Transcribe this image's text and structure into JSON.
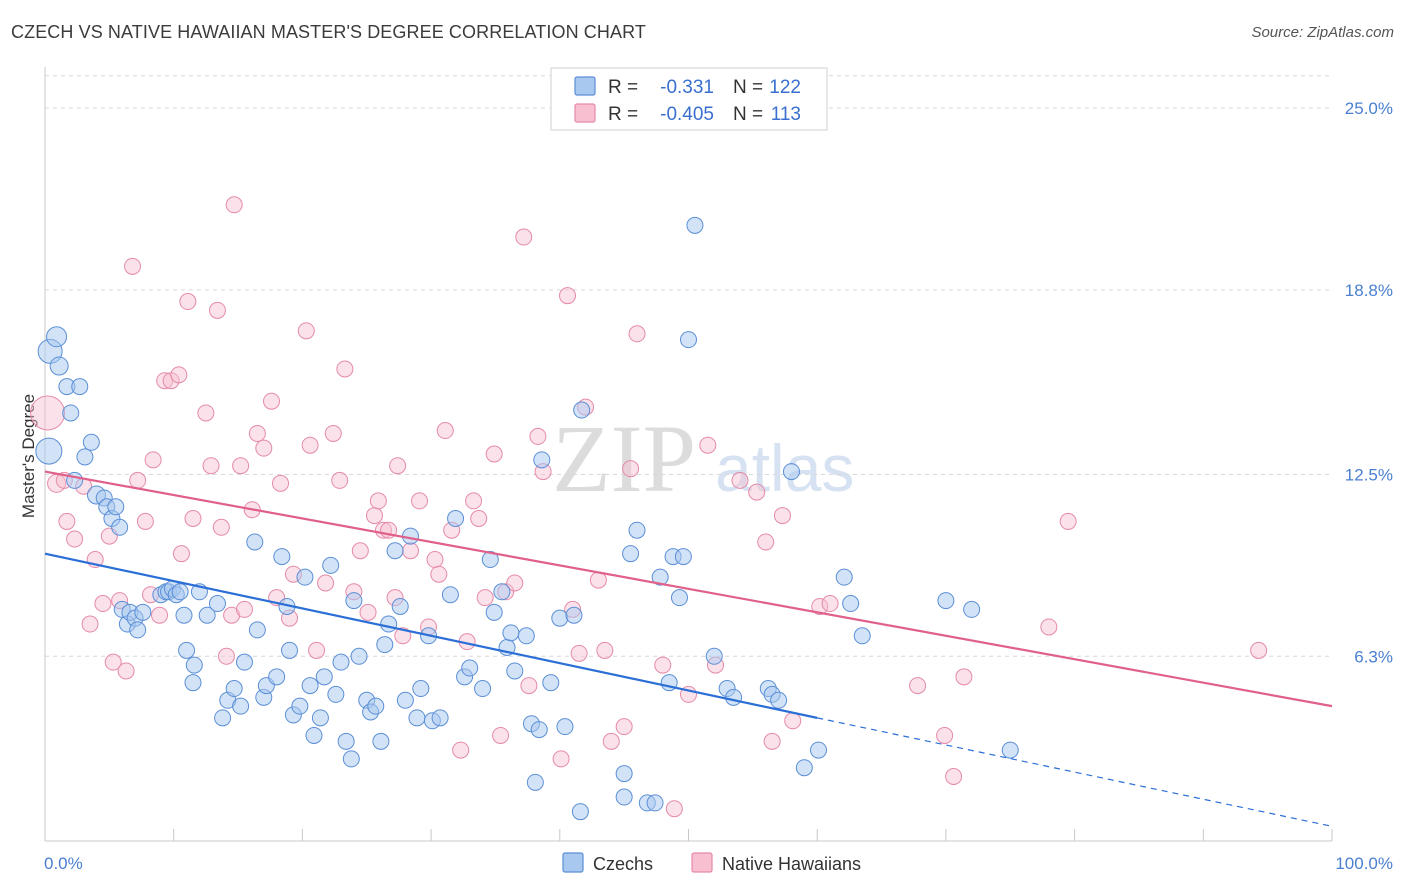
{
  "title": "CZECH VS NATIVE HAWAIIAN MASTER'S DEGREE CORRELATION CHART",
  "source": "Source: ZipAtlas.com",
  "watermark": {
    "zip": "ZIP",
    "atlas": "atlas"
  },
  "legend": {
    "rows": [
      {
        "r_label": "R =",
        "r_value": "-0.331",
        "n_label": "N =",
        "n_value": "122"
      },
      {
        "r_label": "R =",
        "r_value": "-0.405",
        "n_label": "N =",
        "n_value": "113"
      }
    ]
  },
  "bottom_legend": [
    "Czechs",
    "Native Hawaiians"
  ],
  "colors": {
    "czech_fill": "#a8c8f0",
    "czech_stroke": "#5b8fd6",
    "czech_line": "#2b6fd6",
    "hawaiian_fill": "#f7bfd0",
    "hawaiian_stroke": "#e58aa8",
    "hawaiian_line": "#e0608a",
    "tick_text": "#4a7fd1",
    "grid": "#d8d8d8"
  },
  "chart_data": {
    "type": "scatter",
    "title": "CZECH VS NATIVE HAWAIIAN MASTER'S DEGREE CORRELATION CHART",
    "xlabel": "",
    "ylabel": "Master's Degree",
    "xlim": [
      0,
      100
    ],
    "ylim": [
      0,
      26.4
    ],
    "x_tick_labels": [
      "0.0%",
      "100.0%"
    ],
    "y_ticks": [
      6.3,
      12.5,
      18.8,
      25.0
    ],
    "y_tick_labels": [
      "6.3%",
      "12.5%",
      "18.8%",
      "25.0%"
    ],
    "series": [
      {
        "name": "Czechs",
        "R": -0.331,
        "N": 122,
        "trend": {
          "x0": 0,
          "y0": 9.8,
          "x1": 60,
          "y1": 4.2,
          "dash_to_x": 100,
          "dash_to_y": 0.5
        },
        "points": [
          [
            0.3,
            13.3,
            12
          ],
          [
            0.4,
            16.7,
            11
          ],
          [
            0.9,
            17.2,
            9
          ],
          [
            1.1,
            16.2,
            8
          ],
          [
            1.7,
            15.5,
            7
          ],
          [
            2.0,
            14.6,
            7
          ],
          [
            2.7,
            15.5,
            7
          ],
          [
            2.3,
            12.3,
            7
          ],
          [
            3.1,
            13.1,
            7
          ],
          [
            3.6,
            13.6,
            7
          ],
          [
            4.0,
            11.8,
            8
          ],
          [
            4.6,
            11.7,
            7
          ],
          [
            4.8,
            11.4,
            7
          ],
          [
            5.2,
            11.0,
            7
          ],
          [
            5.5,
            11.4,
            7
          ],
          [
            5.8,
            10.7,
            7
          ],
          [
            6.0,
            7.9,
            7
          ],
          [
            6.4,
            7.4,
            7
          ],
          [
            6.6,
            7.8,
            7
          ],
          [
            7.0,
            7.6,
            7
          ],
          [
            7.2,
            7.2,
            7
          ],
          [
            7.6,
            7.8,
            7
          ],
          [
            9.0,
            8.4,
            7
          ],
          [
            9.4,
            8.5,
            7
          ],
          [
            9.6,
            8.5,
            7
          ],
          [
            9.9,
            8.6,
            7
          ],
          [
            10.2,
            8.4,
            7
          ],
          [
            10.5,
            8.5,
            7
          ],
          [
            11.0,
            6.5,
            7
          ],
          [
            10.8,
            7.7,
            7
          ],
          [
            11.5,
            5.4,
            7
          ],
          [
            11.6,
            6.0,
            7
          ],
          [
            12.0,
            8.5,
            7
          ],
          [
            12.6,
            7.7,
            7
          ],
          [
            13.4,
            8.1,
            7
          ],
          [
            13.8,
            4.2,
            7
          ],
          [
            14.2,
            4.8,
            7
          ],
          [
            14.7,
            5.2,
            7
          ],
          [
            15.2,
            4.6,
            7
          ],
          [
            15.5,
            6.1,
            7
          ],
          [
            16.3,
            10.2,
            7
          ],
          [
            16.5,
            7.2,
            7
          ],
          [
            17.0,
            4.9,
            7
          ],
          [
            17.2,
            5.3,
            7
          ],
          [
            18.0,
            5.6,
            7
          ],
          [
            18.4,
            9.7,
            7
          ],
          [
            18.8,
            8.0,
            7
          ],
          [
            19.0,
            6.5,
            7
          ],
          [
            19.3,
            4.3,
            7
          ],
          [
            19.8,
            4.6,
            7
          ],
          [
            20.2,
            9.0,
            7
          ],
          [
            20.6,
            5.3,
            7
          ],
          [
            20.9,
            3.6,
            7
          ],
          [
            21.4,
            4.2,
            7
          ],
          [
            21.7,
            5.6,
            7
          ],
          [
            22.2,
            9.4,
            7
          ],
          [
            22.6,
            5.0,
            7
          ],
          [
            23.0,
            6.1,
            7
          ],
          [
            23.4,
            3.4,
            7
          ],
          [
            23.8,
            2.8,
            7
          ],
          [
            24.0,
            8.2,
            7
          ],
          [
            24.4,
            6.3,
            7
          ],
          [
            25.0,
            4.8,
            7
          ],
          [
            25.3,
            4.4,
            7
          ],
          [
            25.7,
            4.6,
            7
          ],
          [
            26.1,
            3.4,
            7
          ],
          [
            26.4,
            6.7,
            7
          ],
          [
            26.7,
            7.4,
            7
          ],
          [
            27.2,
            9.9,
            7
          ],
          [
            27.6,
            8.0,
            7
          ],
          [
            28.0,
            4.8,
            7
          ],
          [
            28.4,
            10.4,
            7
          ],
          [
            28.9,
            4.2,
            7
          ],
          [
            29.2,
            5.2,
            7
          ],
          [
            29.8,
            7.0,
            7
          ],
          [
            30.1,
            4.1,
            7
          ],
          [
            30.7,
            4.2,
            7
          ],
          [
            31.5,
            8.4,
            7
          ],
          [
            31.9,
            11.0,
            7
          ],
          [
            32.6,
            5.6,
            7
          ],
          [
            33.0,
            5.9,
            7
          ],
          [
            34.0,
            5.2,
            7
          ],
          [
            34.6,
            9.6,
            7
          ],
          [
            34.9,
            7.8,
            7
          ],
          [
            35.5,
            8.5,
            7
          ],
          [
            35.9,
            6.6,
            7
          ],
          [
            36.2,
            7.1,
            7
          ],
          [
            36.5,
            5.8,
            7
          ],
          [
            37.4,
            7.0,
            7
          ],
          [
            37.8,
            4.0,
            7
          ],
          [
            38.1,
            2.0,
            7
          ],
          [
            38.4,
            3.8,
            7
          ],
          [
            38.6,
            13.0,
            7
          ],
          [
            39.3,
            5.4,
            7
          ],
          [
            40.0,
            7.6,
            7
          ],
          [
            40.4,
            3.9,
            7
          ],
          [
            41.1,
            7.7,
            7
          ],
          [
            41.6,
            1.0,
            7
          ],
          [
            41.7,
            14.7,
            7
          ],
          [
            45.0,
            2.3,
            7
          ],
          [
            45.0,
            1.5,
            7
          ],
          [
            45.5,
            9.8,
            7
          ],
          [
            46.0,
            10.6,
            7
          ],
          [
            46.8,
            1.3,
            7
          ],
          [
            47.4,
            1.3,
            7
          ],
          [
            47.8,
            9.0,
            7
          ],
          [
            48.5,
            5.4,
            7
          ],
          [
            48.8,
            9.7,
            7
          ],
          [
            49.3,
            8.3,
            7
          ],
          [
            49.6,
            9.7,
            7
          ],
          [
            50.0,
            17.1,
            7
          ],
          [
            50.5,
            21.0,
            7
          ],
          [
            52.0,
            6.3,
            7
          ],
          [
            53.0,
            5.2,
            7
          ],
          [
            53.5,
            4.9,
            7
          ],
          [
            56.2,
            5.2,
            7
          ],
          [
            56.5,
            5.0,
            7
          ],
          [
            57.0,
            4.8,
            7
          ],
          [
            58.0,
            12.6,
            7
          ],
          [
            59.0,
            2.5,
            7
          ],
          [
            60.1,
            3.1,
            7
          ],
          [
            62.1,
            9.0,
            7
          ],
          [
            62.6,
            8.1,
            7
          ],
          [
            63.5,
            7.0,
            7
          ],
          [
            70.0,
            8.2,
            7
          ],
          [
            72.0,
            7.9,
            7
          ],
          [
            75.0,
            3.1,
            7
          ]
        ]
      },
      {
        "name": "Native Hawaiians",
        "R": -0.405,
        "N": 113,
        "trend": {
          "x0": 0,
          "y0": 12.6,
          "x1": 100,
          "y1": 4.6
        },
        "points": [
          [
            0.2,
            14.6,
            16
          ],
          [
            0.9,
            12.2,
            8
          ],
          [
            1.5,
            12.3,
            7
          ],
          [
            1.7,
            10.9,
            7
          ],
          [
            2.3,
            10.3,
            7
          ],
          [
            3.0,
            12.1,
            7
          ],
          [
            3.5,
            7.4,
            7
          ],
          [
            3.9,
            9.6,
            7
          ],
          [
            4.5,
            8.1,
            7
          ],
          [
            5.0,
            10.4,
            7
          ],
          [
            5.3,
            6.1,
            7
          ],
          [
            5.8,
            8.2,
            7
          ],
          [
            6.3,
            5.8,
            7
          ],
          [
            6.8,
            19.6,
            7
          ],
          [
            7.2,
            12.3,
            7
          ],
          [
            7.8,
            10.9,
            7
          ],
          [
            8.2,
            8.4,
            7
          ],
          [
            8.4,
            13.0,
            7
          ],
          [
            8.9,
            7.7,
            7
          ],
          [
            9.3,
            15.7,
            7
          ],
          [
            9.8,
            15.7,
            7
          ],
          [
            10.4,
            15.9,
            7
          ],
          [
            10.6,
            9.8,
            7
          ],
          [
            11.1,
            18.4,
            7
          ],
          [
            11.5,
            11.0,
            7
          ],
          [
            12.5,
            14.6,
            7
          ],
          [
            12.9,
            12.8,
            7
          ],
          [
            13.4,
            18.1,
            7
          ],
          [
            13.7,
            10.7,
            7
          ],
          [
            14.1,
            6.3,
            7
          ],
          [
            14.5,
            7.7,
            7
          ],
          [
            14.7,
            21.7,
            7
          ],
          [
            15.2,
            12.8,
            7
          ],
          [
            15.5,
            7.9,
            7
          ],
          [
            16.1,
            11.3,
            7
          ],
          [
            16.5,
            13.9,
            7
          ],
          [
            17.0,
            13.4,
            7
          ],
          [
            17.6,
            15.0,
            7
          ],
          [
            18.0,
            8.3,
            7
          ],
          [
            18.3,
            12.2,
            7
          ],
          [
            19.0,
            7.6,
            7
          ],
          [
            19.3,
            9.1,
            7
          ],
          [
            20.3,
            17.4,
            7
          ],
          [
            20.6,
            13.5,
            7
          ],
          [
            21.1,
            6.5,
            7
          ],
          [
            21.8,
            8.8,
            7
          ],
          [
            22.4,
            13.9,
            7
          ],
          [
            22.9,
            12.3,
            7
          ],
          [
            23.3,
            16.1,
            7
          ],
          [
            24.0,
            8.5,
            7
          ],
          [
            24.5,
            9.9,
            7
          ],
          [
            25.1,
            7.8,
            7
          ],
          [
            25.6,
            11.1,
            7
          ],
          [
            25.9,
            11.6,
            7
          ],
          [
            26.3,
            10.6,
            7
          ],
          [
            26.7,
            10.6,
            7
          ],
          [
            27.2,
            8.3,
            7
          ],
          [
            27.4,
            12.8,
            7
          ],
          [
            27.8,
            7.0,
            7
          ],
          [
            28.4,
            9.9,
            7
          ],
          [
            29.1,
            11.6,
            7
          ],
          [
            29.8,
            7.3,
            7
          ],
          [
            30.3,
            9.6,
            7
          ],
          [
            30.6,
            9.1,
            7
          ],
          [
            31.1,
            14.0,
            7
          ],
          [
            31.6,
            10.6,
            7
          ],
          [
            32.3,
            3.1,
            7
          ],
          [
            32.8,
            6.8,
            7
          ],
          [
            33.3,
            11.6,
            7
          ],
          [
            33.7,
            11.0,
            7
          ],
          [
            34.2,
            8.3,
            7
          ],
          [
            34.9,
            13.2,
            7
          ],
          [
            35.4,
            3.6,
            7
          ],
          [
            35.8,
            8.5,
            7
          ],
          [
            36.5,
            8.8,
            7
          ],
          [
            37.2,
            20.6,
            7
          ],
          [
            37.6,
            5.3,
            7
          ],
          [
            38.3,
            13.8,
            7
          ],
          [
            38.7,
            12.6,
            7
          ],
          [
            40.1,
            2.8,
            7
          ],
          [
            40.6,
            18.6,
            7
          ],
          [
            41.0,
            7.9,
            7
          ],
          [
            41.5,
            6.4,
            7
          ],
          [
            42.0,
            14.8,
            7
          ],
          [
            43.0,
            8.9,
            7
          ],
          [
            43.5,
            6.5,
            7
          ],
          [
            44.0,
            3.4,
            7
          ],
          [
            45.0,
            3.9,
            7
          ],
          [
            45.5,
            12.7,
            7
          ],
          [
            46.0,
            17.3,
            7
          ],
          [
            48.0,
            6.0,
            7
          ],
          [
            48.9,
            1.1,
            7
          ],
          [
            50.0,
            5.0,
            7
          ],
          [
            51.5,
            13.5,
            7
          ],
          [
            52.1,
            6.0,
            7
          ],
          [
            54.0,
            12.3,
            7
          ],
          [
            55.3,
            11.9,
            7
          ],
          [
            56.0,
            10.2,
            7
          ],
          [
            56.5,
            3.4,
            7
          ],
          [
            57.3,
            11.1,
            7
          ],
          [
            58.1,
            4.1,
            7
          ],
          [
            60.2,
            8.0,
            7
          ],
          [
            61.0,
            8.1,
            7
          ],
          [
            67.8,
            5.3,
            7
          ],
          [
            69.9,
            3.6,
            7
          ],
          [
            70.6,
            2.2,
            7
          ],
          [
            71.4,
            5.6,
            7
          ],
          [
            78.0,
            7.3,
            7
          ],
          [
            79.5,
            10.9,
            7
          ],
          [
            94.3,
            6.5,
            7
          ]
        ]
      }
    ]
  }
}
